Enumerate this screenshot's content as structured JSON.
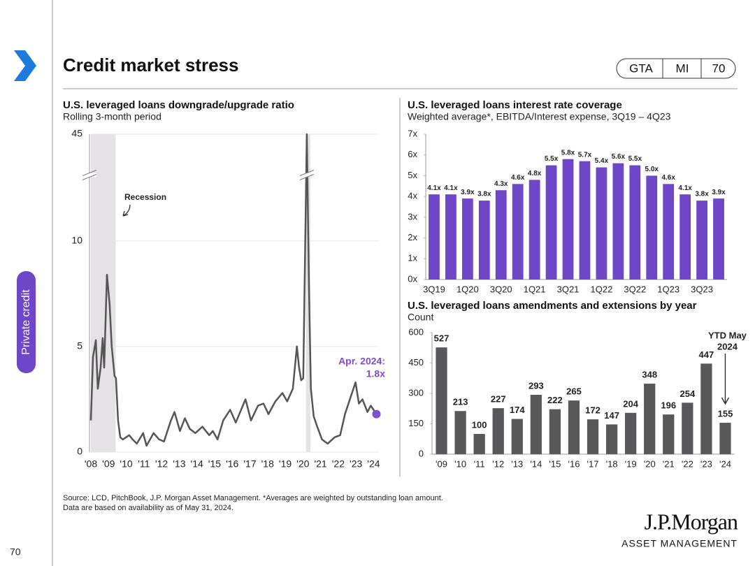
{
  "header": {
    "title": "Credit market stress",
    "tags": [
      "GTA",
      "MI",
      "70"
    ],
    "side_label": "Private credit",
    "page_number": "70"
  },
  "chart_data": [
    {
      "type": "line",
      "title": "U.S. leveraged loans downgrade/upgrade ratio",
      "subtitle": "Rolling 3-month period",
      "x": [
        2008.0,
        2008.12,
        2008.28,
        2008.39,
        2008.55,
        2008.67,
        2008.75,
        2008.91,
        2009.06,
        2009.18,
        2009.34,
        2009.42,
        2009.54,
        2009.66,
        2009.81,
        2010.17,
        2010.36,
        2010.6,
        2010.96,
        2011.15,
        2011.55,
        2011.86,
        2012.14,
        2012.53,
        2012.73,
        2013.04,
        2013.32,
        2013.6,
        2013.91,
        2014.31,
        2014.7,
        2014.9,
        2015.17,
        2015.49,
        2015.88,
        2016.2,
        2016.75,
        2017.06,
        2017.46,
        2017.77,
        2018.05,
        2018.44,
        2018.84,
        2019.11,
        2019.43,
        2019.66,
        2019.78,
        2019.9,
        2020.02,
        2020.22,
        2020.34,
        2020.45,
        2020.61,
        2020.81,
        2021.08,
        2021.4,
        2021.79,
        2022.11,
        2022.38,
        2022.66,
        2022.98,
        2023.17,
        2023.37,
        2023.65,
        2023.84,
        2024.16
      ],
      "values": [
        1.5,
        4.5,
        5.3,
        3.0,
        4.0,
        5.4,
        4.0,
        8.4,
        7.0,
        5.0,
        3.6,
        3.5,
        1.5,
        0.7,
        0.6,
        0.8,
        0.6,
        0.4,
        0.9,
        0.3,
        0.9,
        0.6,
        0.5,
        1.5,
        1.9,
        1.0,
        1.6,
        1.1,
        0.9,
        1.2,
        0.8,
        1.0,
        0.6,
        1.5,
        2.0,
        1.4,
        2.5,
        1.5,
        2.2,
        2.3,
        1.8,
        2.4,
        2.8,
        2.4,
        3.0,
        5.0,
        4.0,
        3.4,
        3.5,
        45,
        8.0,
        3.0,
        1.7,
        1.2,
        0.6,
        0.4,
        0.7,
        0.8,
        1.8,
        2.5,
        3.3,
        2.3,
        2.5,
        1.9,
        2.2,
        1.8
      ],
      "color": "#555555",
      "highlight_color": "#7b4fd0",
      "xlim": [
        2008,
        2024.3
      ],
      "xticks": [
        {
          "value": 2008,
          "label": "'08"
        },
        {
          "value": 2009,
          "label": "'09"
        },
        {
          "value": 2010,
          "label": "'10"
        },
        {
          "value": 2011,
          "label": "'11"
        },
        {
          "value": 2012,
          "label": "'12"
        },
        {
          "value": 2013,
          "label": "'13"
        },
        {
          "value": 2014,
          "label": "'14"
        },
        {
          "value": 2015,
          "label": "'15"
        },
        {
          "value": 2016,
          "label": "'16"
        },
        {
          "value": 2017,
          "label": "'17"
        },
        {
          "value": 2018,
          "label": "'18"
        },
        {
          "value": 2019,
          "label": "'19"
        },
        {
          "value": 2020,
          "label": "'20"
        },
        {
          "value": 2021,
          "label": "'21"
        },
        {
          "value": 2022,
          "label": "'22"
        },
        {
          "value": 2023,
          "label": "'23"
        },
        {
          "value": 2024,
          "label": "'24"
        }
      ],
      "ylim": [
        0,
        45
      ],
      "yticks": [
        0,
        5,
        10,
        45
      ],
      "y_break": [
        13,
        40
      ],
      "grid": true,
      "recessions": [
        [
          2008.0,
          2009.4
        ],
        [
          2020.17,
          2020.42
        ]
      ],
      "recession_color": "#e4e2e4",
      "annotations": [
        "Recession",
        "Apr. 2024:",
        "1.8x"
      ]
    },
    {
      "type": "bar",
      "title": "U.S. leveraged loans interest rate coverage",
      "subtitle": "Weighted average*, EBITDA/Interest expense, 3Q19 – 4Q23",
      "categories": [
        "3Q19",
        null,
        "1Q20",
        null,
        "3Q20",
        null,
        "1Q21",
        null,
        "3Q21",
        null,
        "1Q22",
        null,
        "3Q22",
        null,
        "1Q23",
        null,
        "3Q23",
        null
      ],
      "values": [
        4.1,
        4.1,
        3.9,
        3.8,
        4.3,
        4.6,
        4.8,
        5.5,
        5.8,
        5.7,
        5.4,
        5.6,
        5.5,
        5.0,
        4.6,
        4.1,
        3.8,
        3.9
      ],
      "value_labels": [
        "4.1x",
        "4.1x",
        "3.9x",
        "3.8x",
        "4.3x",
        "4.6x",
        "4.8x",
        "5.5x",
        "5.8x",
        "5.7x",
        "5.4x",
        "5.6x",
        "5.5x",
        "5.0x",
        "4.6x",
        "4.1x",
        "3.8x",
        "3.9x"
      ],
      "color": "#7046c8",
      "ylim": [
        0,
        7
      ],
      "yticks": [
        {
          "value": 0,
          "label": "0x"
        },
        {
          "value": 1,
          "label": "1x"
        },
        {
          "value": 2,
          "label": "2x"
        },
        {
          "value": 3,
          "label": "3x"
        },
        {
          "value": 4,
          "label": "4x"
        },
        {
          "value": 5,
          "label": "5x"
        },
        {
          "value": 6,
          "label": "6x"
        },
        {
          "value": 7,
          "label": "7x"
        }
      ]
    },
    {
      "type": "bar",
      "title": "U.S. leveraged loans amendments and extensions by year",
      "subtitle": "Count",
      "categories": [
        "'09",
        "'10",
        "'11",
        "'12",
        "'13",
        "'14",
        "'15",
        "'16",
        "'17",
        "'18",
        "'19",
        "'20",
        "'21",
        "'22",
        "'23",
        "'24"
      ],
      "values": [
        527,
        213,
        100,
        227,
        174,
        293,
        222,
        265,
        172,
        147,
        204,
        348,
        196,
        254,
        447,
        155
      ],
      "color": "#58585a",
      "ylim": [
        0,
        600
      ],
      "yticks": [
        0,
        150,
        300,
        450,
        600
      ],
      "annotations": [
        "YTD May",
        "2024"
      ]
    }
  ],
  "footer": {
    "source": "Source: LCD, PitchBook,  J.P. Morgan Asset Management. *Averages are weighted by outstanding loan amount.",
    "note": "Data are based on availability as of May 31, 2024.",
    "logo": "J.P.Morgan",
    "logo_sub": "ASSET MANAGEMENT"
  }
}
